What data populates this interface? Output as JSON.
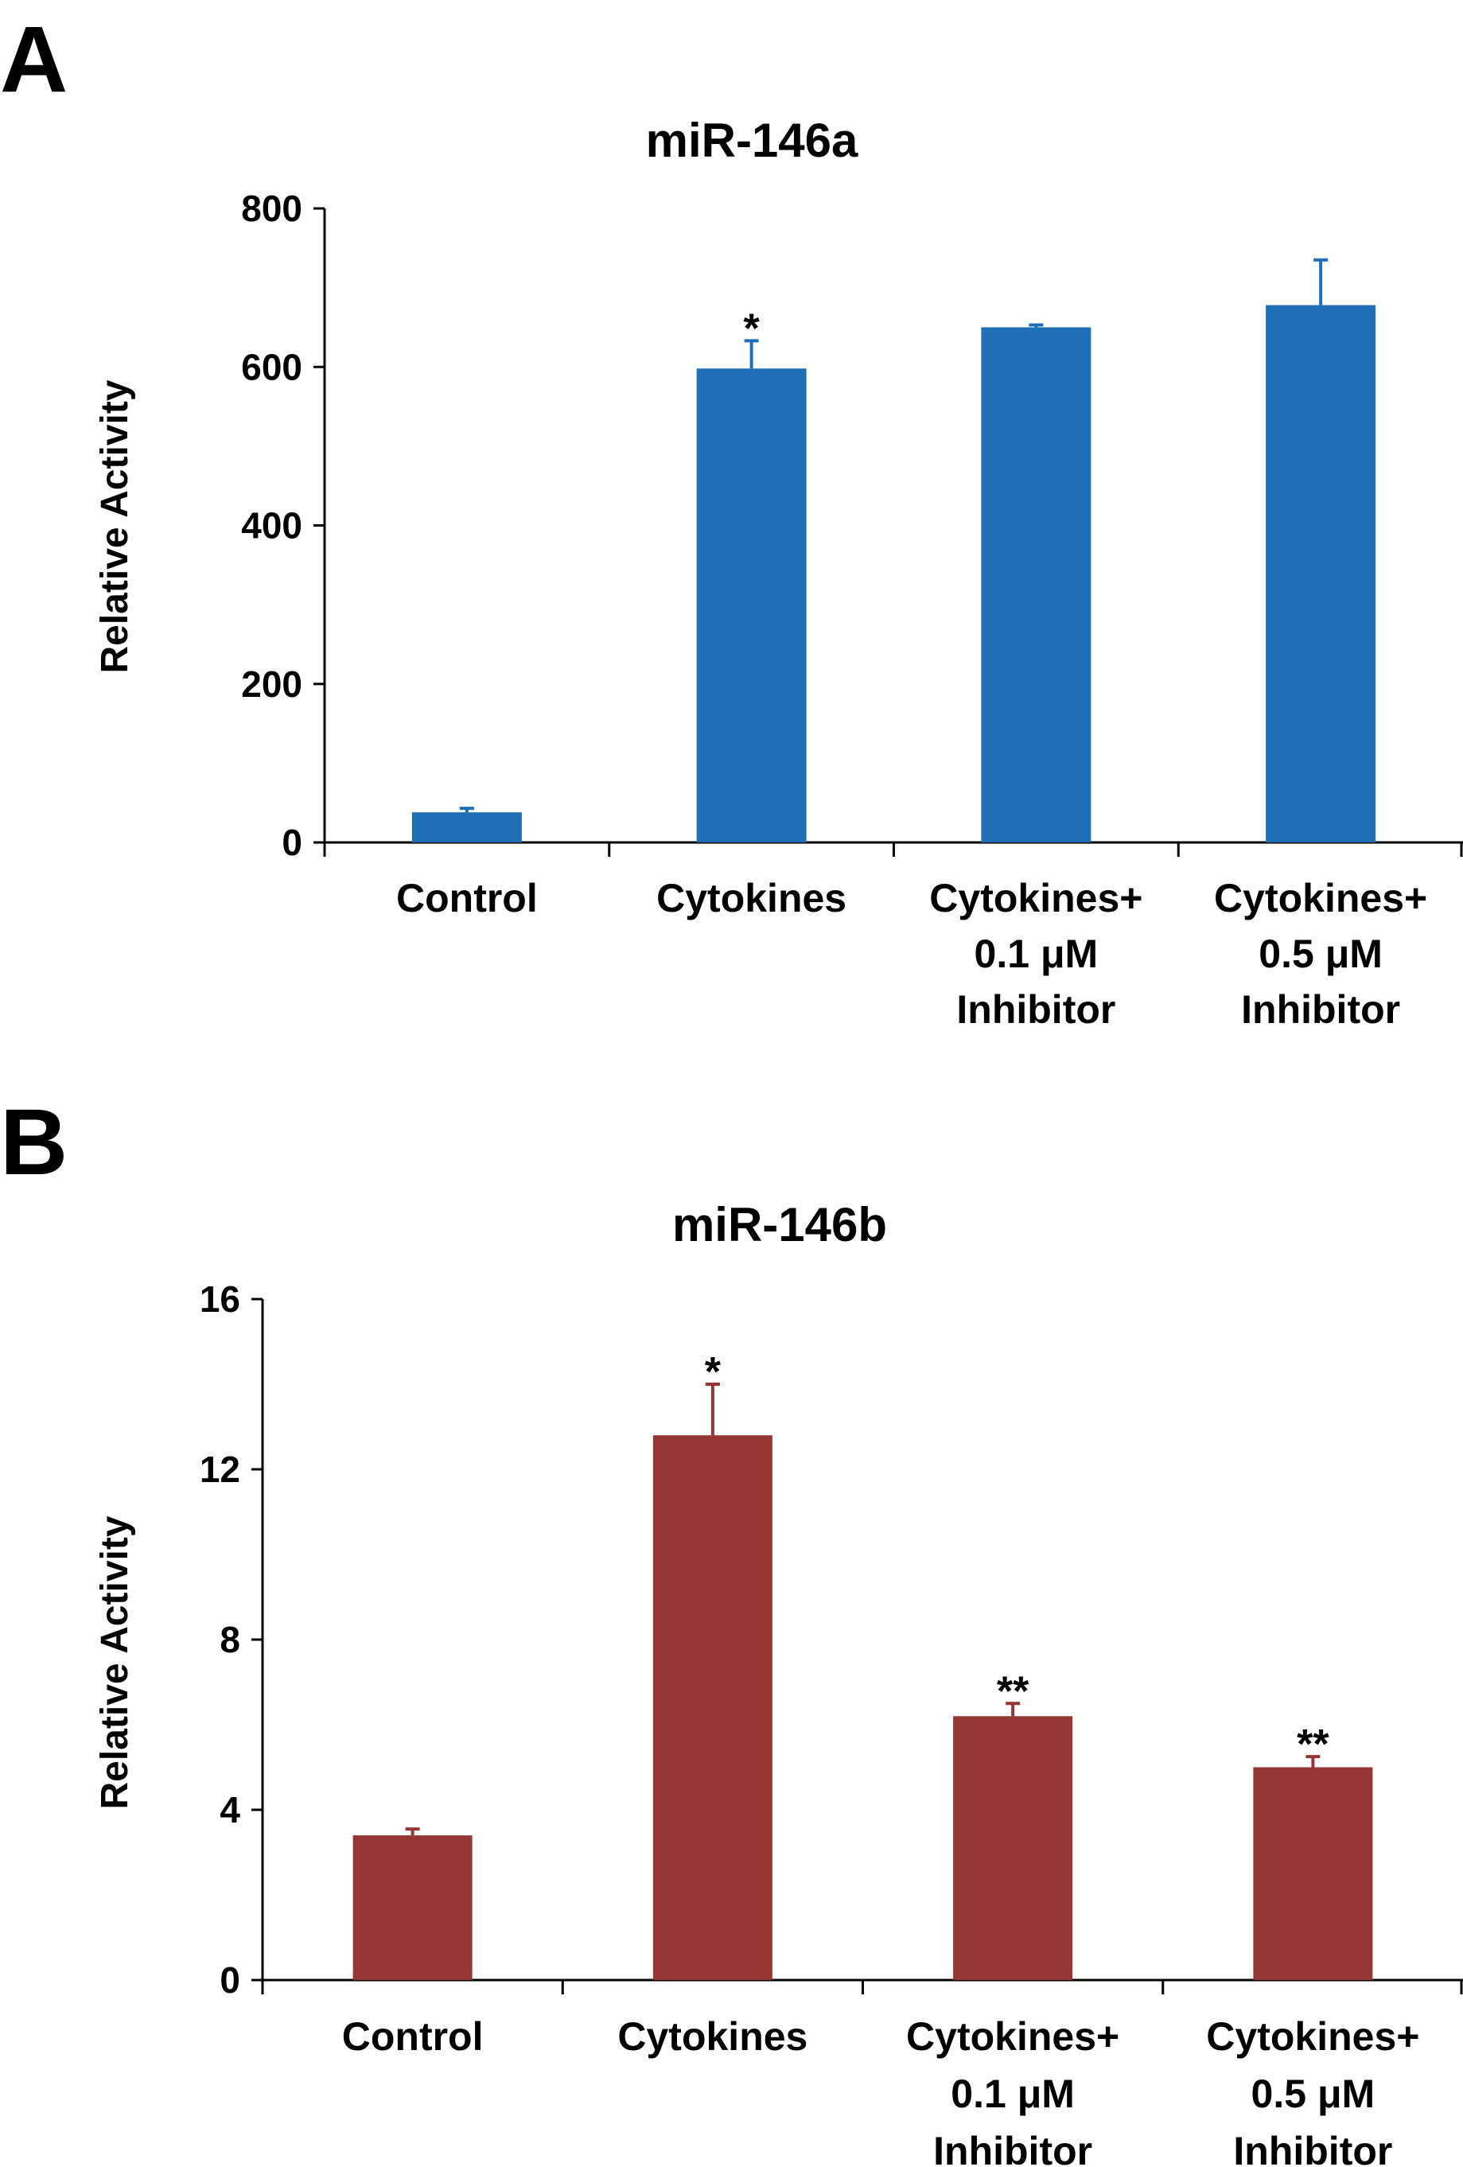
{
  "panels": [
    {
      "letter": "A"
    },
    {
      "letter": "B"
    }
  ],
  "chart_data": [
    {
      "type": "bar",
      "title": "miR-146a",
      "ylabel": "Relative Activity",
      "xlabel": "",
      "ylim": [
        0,
        800
      ],
      "yticks": [
        0,
        200,
        400,
        600,
        800
      ],
      "categories": [
        [
          "Control"
        ],
        [
          "Cytokines"
        ],
        [
          "Cytokines+",
          "0.1 μM",
          "Inhibitor"
        ],
        [
          "Cytokines+",
          "0.5 μM",
          "Inhibitor"
        ]
      ],
      "values": [
        38,
        598,
        650,
        678
      ],
      "errors": [
        5,
        35,
        3,
        57
      ],
      "significance": [
        "",
        "*",
        "",
        ""
      ],
      "color": "#1f6fb7",
      "grid": false
    },
    {
      "type": "bar",
      "title": "miR-146b",
      "ylabel": "Relative Activity",
      "xlabel": "",
      "ylim": [
        0,
        16
      ],
      "yticks": [
        0,
        4,
        8,
        12,
        16
      ],
      "categories": [
        [
          "Control"
        ],
        [
          "Cytokines"
        ],
        [
          "Cytokines+",
          "0.1 μM",
          "Inhibitor"
        ],
        [
          "Cytokines+",
          "0.5 μM",
          "Inhibitor"
        ]
      ],
      "values": [
        3.4,
        12.8,
        6.2,
        5.0
      ],
      "errors": [
        0.15,
        1.2,
        0.3,
        0.25
      ],
      "significance": [
        "",
        "*",
        "**",
        "**"
      ],
      "color": "#943634",
      "grid": false
    }
  ]
}
